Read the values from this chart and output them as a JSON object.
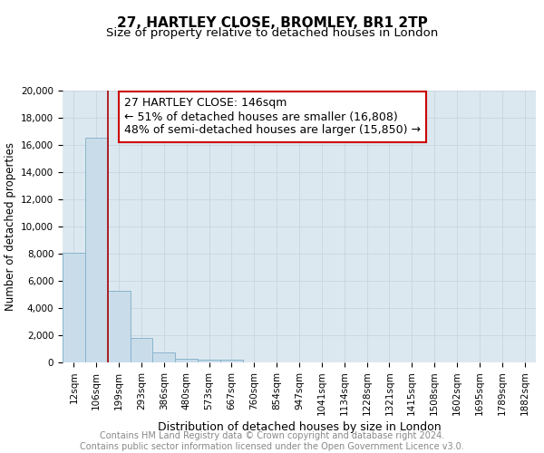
{
  "title1": "27, HARTLEY CLOSE, BROMLEY, BR1 2TP",
  "title2": "Size of property relative to detached houses in London",
  "xlabel": "Distribution of detached houses by size in London",
  "ylabel": "Number of detached properties",
  "categories": [
    "12sqm",
    "106sqm",
    "199sqm",
    "293sqm",
    "386sqm",
    "480sqm",
    "573sqm",
    "667sqm",
    "760sqm",
    "854sqm",
    "947sqm",
    "1041sqm",
    "1134sqm",
    "1228sqm",
    "1321sqm",
    "1415sqm",
    "1508sqm",
    "1602sqm",
    "1695sqm",
    "1789sqm",
    "1882sqm"
  ],
  "values": [
    8100,
    16500,
    5300,
    1800,
    750,
    300,
    200,
    200,
    0,
    0,
    0,
    0,
    0,
    0,
    0,
    0,
    0,
    0,
    0,
    0,
    0
  ],
  "bar_color": "#c9dcea",
  "bar_edge_color": "#8ab4cc",
  "vline_x": 1.5,
  "vline_color": "#aa0000",
  "annotation_line1": "27 HARTLEY CLOSE: 146sqm",
  "annotation_line2": "← 51% of detached houses are smaller (16,808)",
  "annotation_line3": "48% of semi-detached houses are larger (15,850) →",
  "annotation_box_color": "#ffffff",
  "annotation_box_edge_color": "#cc0000",
  "ylim": [
    0,
    20000
  ],
  "yticks": [
    0,
    2000,
    4000,
    6000,
    8000,
    10000,
    12000,
    14000,
    16000,
    18000,
    20000
  ],
  "grid_color": "#c8d4e0",
  "bg_color": "#dce8f0",
  "footer1": "Contains HM Land Registry data © Crown copyright and database right 2024.",
  "footer2": "Contains public sector information licensed under the Open Government Licence v3.0.",
  "title1_fontsize": 11,
  "title2_fontsize": 9.5,
  "xlabel_fontsize": 9,
  "ylabel_fontsize": 8.5,
  "tick_fontsize": 7.5,
  "annotation_fontsize": 9,
  "footer_fontsize": 7
}
